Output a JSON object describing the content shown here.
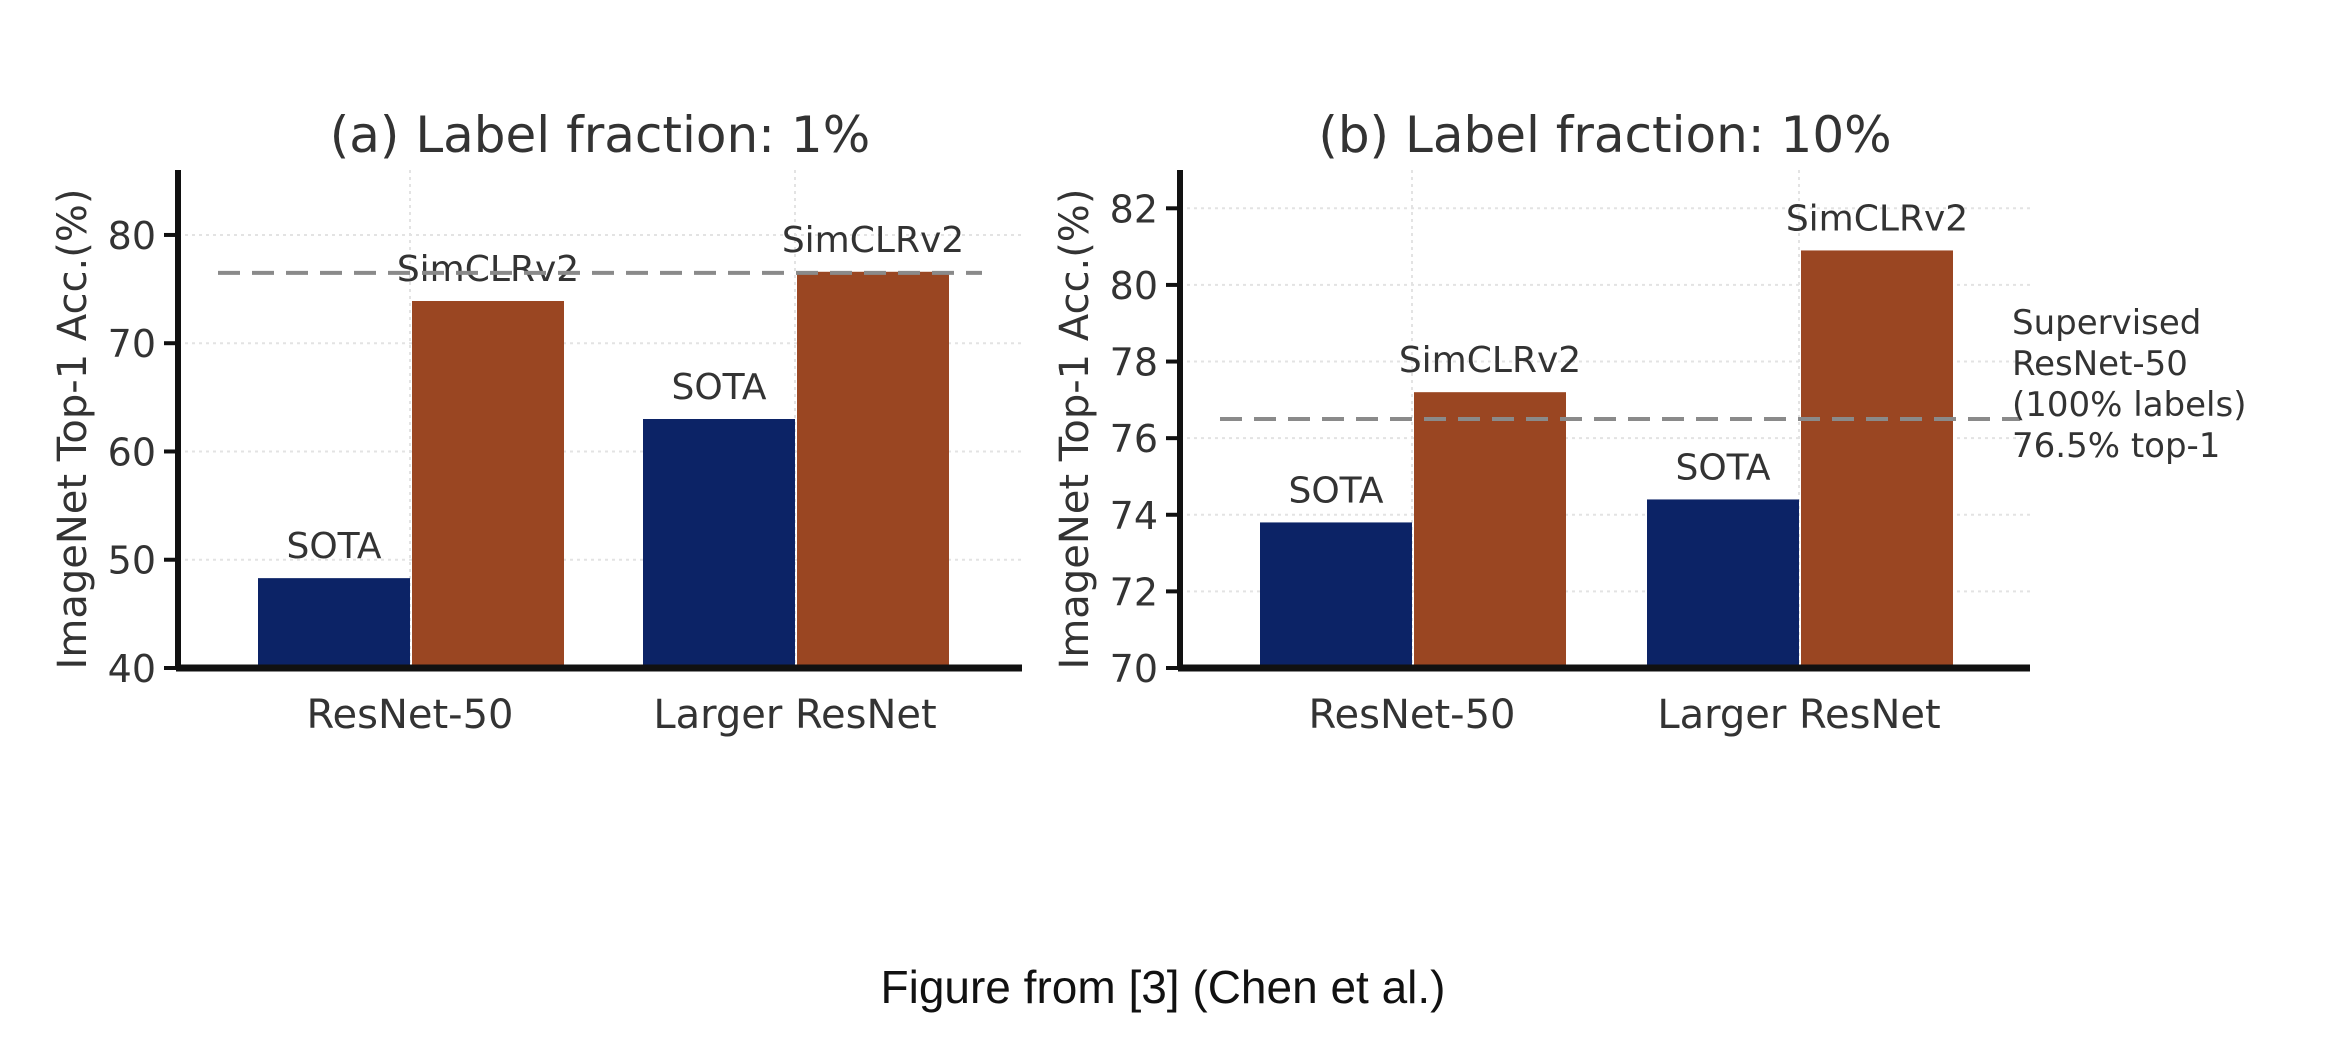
{
  "caption": "Figure from [3] (Chen et al.)",
  "colors": {
    "sota": "#0c2366",
    "simclr": "#9a4622",
    "axis": "#111111",
    "grid": "#e3e3e3",
    "dash": "#8a8a8a"
  },
  "chart_data": [
    {
      "type": "bar",
      "title": "(a) Label fraction: 1%",
      "ylabel": "ImageNet Top-1 Acc.(%)",
      "xlabel": "",
      "categories": [
        "ResNet-50",
        "Larger ResNet"
      ],
      "series": [
        {
          "name": "SOTA",
          "values": [
            48.3,
            63.0
          ],
          "color": "#0c2366",
          "labels": [
            "SOTA",
            "SOTA"
          ]
        },
        {
          "name": "SimCLRv2",
          "values": [
            73.9,
            76.6
          ],
          "color": "#9a4622",
          "labels": [
            "SimCLRv2",
            "SimCLRv2"
          ]
        }
      ],
      "ylim": [
        40,
        86
      ],
      "yticks": [
        40,
        50,
        60,
        70,
        80
      ],
      "reference_line": {
        "value": 76.5
      },
      "annotation": [],
      "grid": true
    },
    {
      "type": "bar",
      "title": "(b) Label fraction: 10%",
      "ylabel": "ImageNet Top-1 Acc.(%)",
      "xlabel": "",
      "categories": [
        "ResNet-50",
        "Larger ResNet"
      ],
      "series": [
        {
          "name": "SOTA",
          "values": [
            73.8,
            74.4
          ],
          "color": "#0c2366",
          "labels": [
            "SOTA",
            "SOTA"
          ]
        },
        {
          "name": "SimCLRv2",
          "values": [
            77.2,
            80.9
          ],
          "color": "#9a4622",
          "labels": [
            "SimCLRv2",
            "SimCLRv2"
          ]
        }
      ],
      "ylim": [
        70,
        83
      ],
      "yticks": [
        70,
        72,
        74,
        76,
        78,
        80,
        82
      ],
      "reference_line": {
        "value": 76.5
      },
      "annotation": [
        "Supervised",
        "ResNet-50",
        "(100% labels)",
        "76.5% top-1"
      ],
      "grid": true
    }
  ]
}
